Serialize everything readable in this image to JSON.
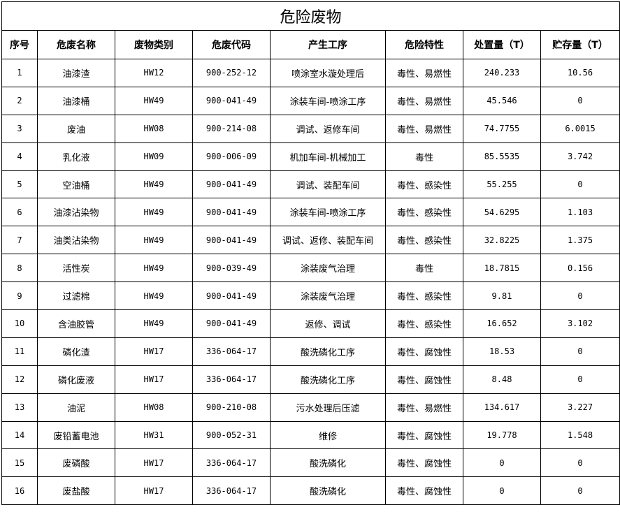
{
  "title": "危险废物",
  "headers": [
    "序号",
    "危废名称",
    "废物类别",
    "危废代码",
    "产生工序",
    "危险特性",
    "处置量（T）",
    "贮存量（T）"
  ],
  "rows": [
    [
      "1",
      "油漆渣",
      "HW12",
      "900-252-12",
      "喷涂室水漩处理后",
      "毒性、易燃性",
      "240.233",
      "10.56"
    ],
    [
      "2",
      "油漆桶",
      "HW49",
      "900-041-49",
      "涂装车间-喷涂工序",
      "毒性、易燃性",
      "45.546",
      "0"
    ],
    [
      "3",
      "废油",
      "HW08",
      "900-214-08",
      "调试、返修车间",
      "毒性、易燃性",
      "74.7755",
      "6.0015"
    ],
    [
      "4",
      "乳化液",
      "HW09",
      "900-006-09",
      "机加车间-机械加工",
      "毒性",
      "85.5535",
      "3.742"
    ],
    [
      "5",
      "空油桶",
      "HW49",
      "900-041-49",
      "调试、装配车间",
      "毒性、感染性",
      "55.255",
      "0"
    ],
    [
      "6",
      "油漆沾染物",
      "HW49",
      "900-041-49",
      "涂装车间-喷涂工序",
      "毒性、感染性",
      "54.6295",
      "1.103"
    ],
    [
      "7",
      "油类沾染物",
      "HW49",
      "900-041-49",
      "调试、返修、装配车间",
      "毒性、感染性",
      "32.8225",
      "1.375"
    ],
    [
      "8",
      "活性炭",
      "HW49",
      "900-039-49",
      "涂装废气治理",
      "毒性",
      "18.7815",
      "0.156"
    ],
    [
      "9",
      "过滤棉",
      "HW49",
      "900-041-49",
      "涂装废气治理",
      "毒性、感染性",
      "9.81",
      "0"
    ],
    [
      "10",
      "含油胶管",
      "HW49",
      "900-041-49",
      "返修、调试",
      "毒性、感染性",
      "16.652",
      "3.102"
    ],
    [
      "11",
      "磷化渣",
      "HW17",
      "336-064-17",
      "酸洗磷化工序",
      "毒性、腐蚀性",
      "18.53",
      "0"
    ],
    [
      "12",
      "磷化废液",
      "HW17",
      "336-064-17",
      "酸洗磷化工序",
      "毒性、腐蚀性",
      "8.48",
      "0"
    ],
    [
      "13",
      "油泥",
      "HW08",
      "900-210-08",
      "污水处理后压滤",
      "毒性、易燃性",
      "134.617",
      "3.227"
    ],
    [
      "14",
      "废铅蓄电池",
      "HW31",
      "900-052-31",
      "维修",
      "毒性、腐蚀性",
      "19.778",
      "1.548"
    ],
    [
      "15",
      "废磷酸",
      "HW17",
      "336-064-17",
      "酸洗磷化",
      "毒性、腐蚀性",
      "0",
      "0"
    ],
    [
      "16",
      "废盐酸",
      "HW17",
      "336-064-17",
      "酸洗磷化",
      "毒性、腐蚀性",
      "0",
      "0"
    ]
  ]
}
